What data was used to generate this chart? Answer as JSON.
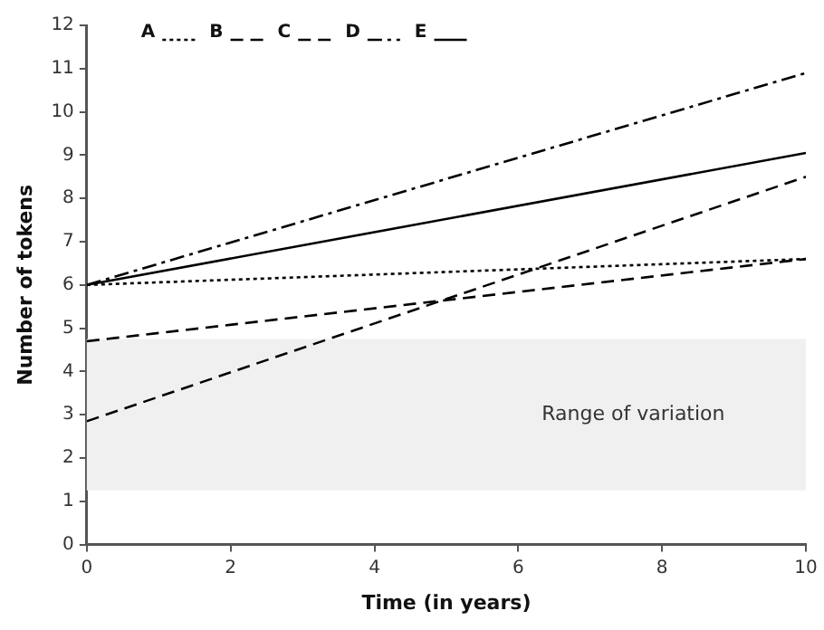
{
  "chart_data": {
    "type": "line",
    "xlabel": "Time (in years)",
    "ylabel": "Number of tokens",
    "x": [
      0,
      10
    ],
    "xlim": [
      0,
      10
    ],
    "xticks": [
      0,
      2,
      4,
      6,
      8,
      10
    ],
    "ylim": [
      0,
      12
    ],
    "yticks": [
      0,
      1,
      2,
      3,
      4,
      5,
      6,
      7,
      8,
      9,
      10,
      11,
      12
    ],
    "grid": false,
    "legend": "top left",
    "marker": "none",
    "series": [
      {
        "name": "A",
        "color": "#000000",
        "values": [
          6,
          6.6
        ],
        "line_style": "dotted"
      },
      {
        "name": "B",
        "color": "#000000",
        "values": [
          4.7,
          6.6
        ],
        "line_style": "dashed"
      },
      {
        "name": "C",
        "color": "#000000",
        "values": [
          2.85,
          8.5
        ],
        "line_style": "dashed"
      },
      {
        "name": "D",
        "color": "#000000",
        "values": [
          6,
          10.9
        ],
        "line_style": "dashdot"
      },
      {
        "name": "E",
        "color": "#000000",
        "values": [
          6,
          9.05
        ],
        "line_style": "solid"
      }
    ],
    "bands": [
      {
        "axis": "y",
        "from": 1.25,
        "to": 4.75,
        "label": "Range of variation",
        "color": "#f0f0f0"
      }
    ]
  }
}
